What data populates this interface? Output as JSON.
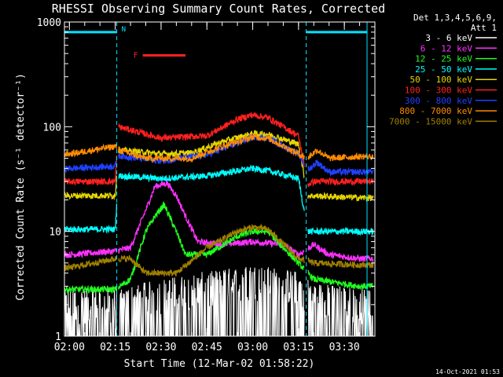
{
  "chart_data": {
    "type": "line",
    "title": "RHESSI Observing Summary Count Rates, Corrected",
    "xlabel": "Start Time (12-Mar-02 01:58:22)",
    "ylabel": "Corrected Count Rate (s⁻¹ detector⁻¹)",
    "yscale": "log",
    "ylim": [
      1,
      1000
    ],
    "xlim": [
      "01:58:22",
      "03:40:00"
    ],
    "x_ticks": [
      "02:00",
      "02:15",
      "02:30",
      "02:45",
      "03:00",
      "03:15",
      "03:30"
    ],
    "y_ticks": [
      "1",
      "10",
      "100",
      "1000"
    ],
    "legend_title": [
      "Det 1,3,4,5,6,9,",
      "Att 1"
    ],
    "legend_position": "right",
    "footer": "14-Oct-2021 01:53",
    "annotations": [
      {
        "text": "N",
        "color": "#00e5ff",
        "start": "02:15:30",
        "end": "03:17:30",
        "level": 800
      },
      {
        "text": "F",
        "color": "#ff2020",
        "start": "02:24",
        "end": "02:38",
        "level": 480
      }
    ],
    "gaps": [
      [
        "02:15:30",
        "02:16:00"
      ],
      [
        "03:17:00",
        "03:18:00"
      ]
    ],
    "series": [
      {
        "name": "3 - 6 keV",
        "color": "#ffffff",
        "points": [
          [
            "02:00",
            1.3
          ],
          [
            "02:15",
            1.3
          ],
          [
            "02:20",
            1.4
          ],
          [
            "02:30",
            1.6
          ],
          [
            "02:45",
            1.9
          ],
          [
            "03:00",
            2.2
          ],
          [
            "03:10",
            2.0
          ],
          [
            "03:15",
            1.9
          ],
          [
            "03:20",
            1.5
          ],
          [
            "03:35",
            1.3
          ]
        ]
      },
      {
        "name": "6 - 12 keV",
        "color": "#ff30ff",
        "points": [
          [
            "02:00",
            6
          ],
          [
            "02:15",
            6.5
          ],
          [
            "02:20",
            7
          ],
          [
            "02:25",
            16
          ],
          [
            "02:28",
            27
          ],
          [
            "02:32",
            29
          ],
          [
            "02:35",
            22
          ],
          [
            "02:38",
            14
          ],
          [
            "02:42",
            8
          ],
          [
            "02:50",
            7.5
          ],
          [
            "03:00",
            8
          ],
          [
            "03:10",
            7.5
          ],
          [
            "03:15",
            6
          ],
          [
            "03:20",
            7.5
          ],
          [
            "03:25",
            6
          ],
          [
            "03:35",
            5.5
          ]
        ]
      },
      {
        "name": "12 - 25 keV",
        "color": "#20ff20",
        "points": [
          [
            "02:00",
            2.8
          ],
          [
            "02:15",
            2.8
          ],
          [
            "02:20",
            3.5
          ],
          [
            "02:25",
            10
          ],
          [
            "02:28",
            14
          ],
          [
            "02:31",
            18
          ],
          [
            "02:35",
            10
          ],
          [
            "02:38",
            6
          ],
          [
            "02:45",
            6
          ],
          [
            "02:55",
            9
          ],
          [
            "03:00",
            10
          ],
          [
            "03:05",
            10
          ],
          [
            "03:10",
            7
          ],
          [
            "03:15",
            5
          ],
          [
            "03:20",
            3.5
          ],
          [
            "03:35",
            3.0
          ]
        ]
      },
      {
        "name": "25 - 50 keV",
        "color": "#00ffff",
        "points": [
          [
            "02:00",
            10.5
          ],
          [
            "02:15",
            10.5
          ],
          [
            "02:16",
            34
          ],
          [
            "02:30",
            32
          ],
          [
            "02:45",
            34
          ],
          [
            "02:55",
            38
          ],
          [
            "03:00",
            40
          ],
          [
            "03:05",
            38
          ],
          [
            "03:15",
            32
          ],
          [
            "03:18",
            10
          ],
          [
            "03:35",
            10
          ]
        ]
      },
      {
        "name": "50 - 100 keV",
        "color": "#e6d600",
        "points": [
          [
            "02:00",
            22
          ],
          [
            "02:15",
            22
          ],
          [
            "02:16",
            60
          ],
          [
            "02:30",
            55
          ],
          [
            "02:40",
            56
          ],
          [
            "02:50",
            72
          ],
          [
            "03:00",
            86
          ],
          [
            "03:05",
            85
          ],
          [
            "03:15",
            68
          ],
          [
            "03:18",
            22
          ],
          [
            "03:35",
            21
          ]
        ]
      },
      {
        "name": "100 - 300 keV",
        "color": "#ff2020",
        "points": [
          [
            "02:00",
            30
          ],
          [
            "02:15",
            30
          ],
          [
            "02:16",
            100
          ],
          [
            "02:30",
            78
          ],
          [
            "02:45",
            82
          ],
          [
            "02:55",
            118
          ],
          [
            "03:00",
            130
          ],
          [
            "03:05",
            122
          ],
          [
            "03:15",
            82
          ],
          [
            "03:18",
            28
          ],
          [
            "03:20",
            30
          ],
          [
            "03:35",
            30
          ]
        ]
      },
      {
        "name": "300 - 800 keV",
        "color": "#2040ff",
        "points": [
          [
            "02:00",
            40
          ],
          [
            "02:15",
            42
          ],
          [
            "02:16",
            53
          ],
          [
            "02:30",
            47
          ],
          [
            "02:45",
            54
          ],
          [
            "02:55",
            70
          ],
          [
            "03:00",
            80
          ],
          [
            "03:05",
            78
          ],
          [
            "03:15",
            55
          ],
          [
            "03:18",
            38
          ],
          [
            "03:21",
            46
          ],
          [
            "03:25",
            37
          ],
          [
            "03:35",
            37
          ]
        ]
      },
      {
        "name": "800 - 7000 keV",
        "color": "#ff8c00",
        "points": [
          [
            "02:00",
            55
          ],
          [
            "02:15",
            65
          ],
          [
            "02:16",
            60
          ],
          [
            "02:25",
            50
          ],
          [
            "02:40",
            50
          ],
          [
            "02:50",
            65
          ],
          [
            "03:00",
            80
          ],
          [
            "03:05",
            78
          ],
          [
            "03:15",
            55
          ],
          [
            "03:18",
            50
          ],
          [
            "03:21",
            60
          ],
          [
            "03:25",
            50
          ],
          [
            "03:35",
            52
          ]
        ]
      },
      {
        "name": "7000 - 15000 keV",
        "color": "#a08000",
        "points": [
          [
            "02:00",
            4.5
          ],
          [
            "02:15",
            5.5
          ],
          [
            "02:20",
            5.5
          ],
          [
            "02:25",
            4
          ],
          [
            "02:35",
            4
          ],
          [
            "02:45",
            7
          ],
          [
            "02:55",
            10
          ],
          [
            "03:00",
            11
          ],
          [
            "03:05",
            10.5
          ],
          [
            "03:15",
            5.5
          ],
          [
            "03:20",
            5
          ],
          [
            "03:35",
            4.8
          ]
        ]
      }
    ]
  }
}
